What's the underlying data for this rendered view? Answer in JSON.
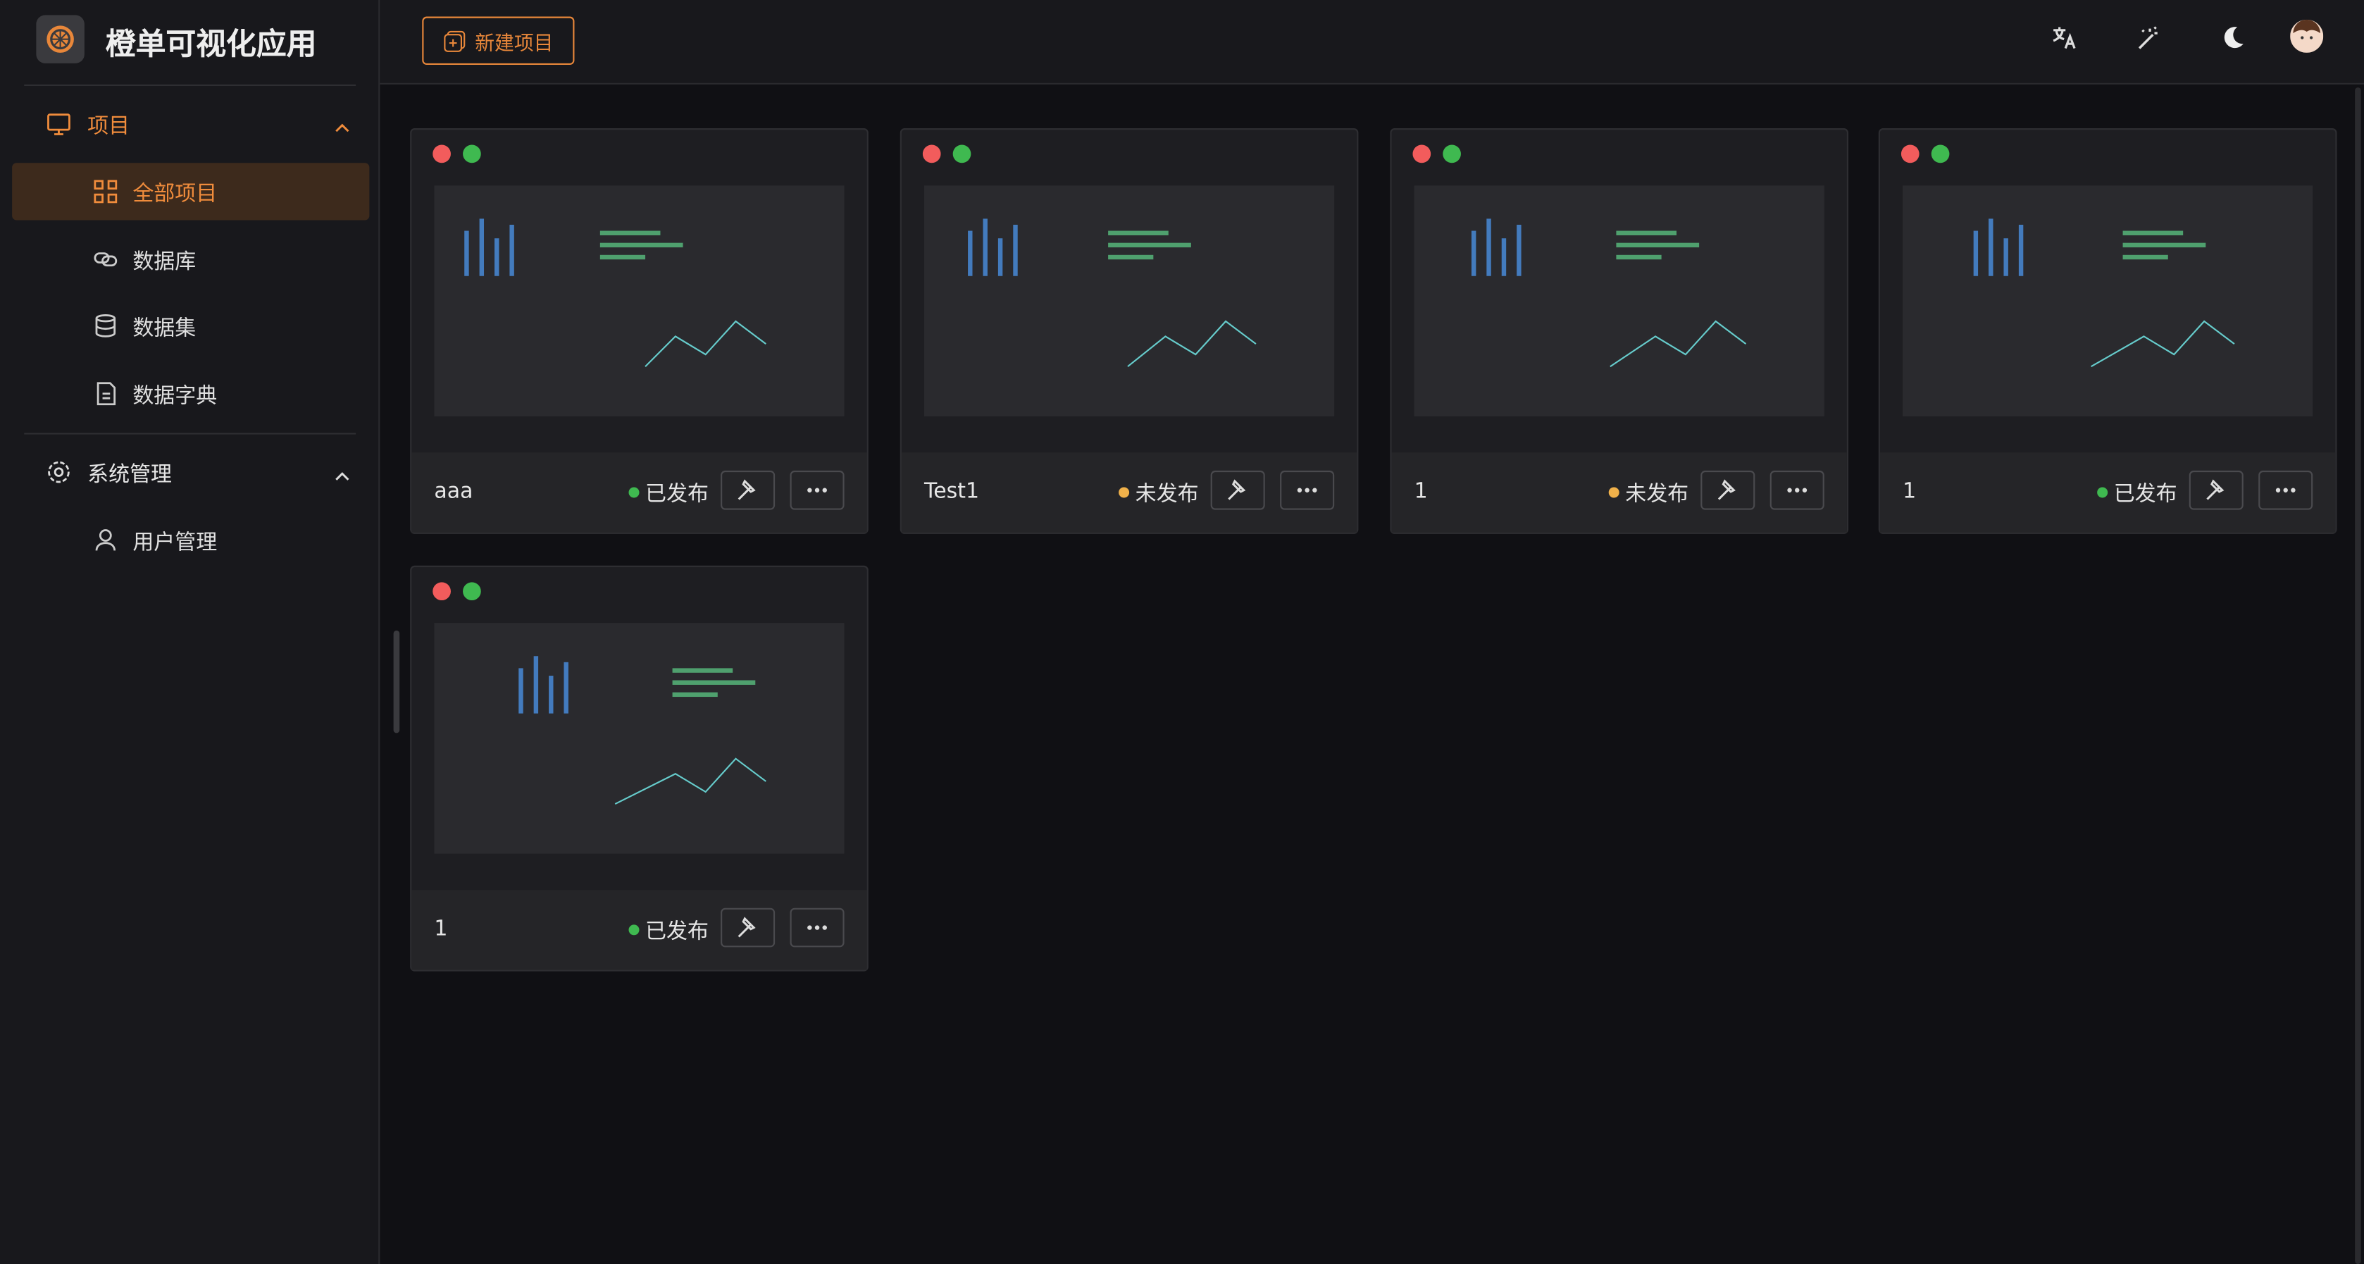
{
  "header": {
    "app_title": "橙单可视化应用",
    "new_button": "新建项目"
  },
  "sidebar": {
    "groups": [
      {
        "label": "项目",
        "items": [
          "全部项目",
          "数据库",
          "数据集",
          "数据字典"
        ]
      },
      {
        "label": "系统管理",
        "items": [
          "用户管理"
        ]
      }
    ]
  },
  "projects": [
    {
      "name": "aaa",
      "status": "已发布",
      "status_color": "#3fb950"
    },
    {
      "name": "Test1",
      "status": "未发布",
      "status_color": "#f0b14a"
    },
    {
      "name": "1",
      "status": "未发布",
      "status_color": "#f0b14a"
    },
    {
      "name": "1",
      "status": "已发布",
      "status_color": "#3fb950"
    },
    {
      "name": "1",
      "status": "已发布",
      "status_color": "#3fb950"
    }
  ]
}
